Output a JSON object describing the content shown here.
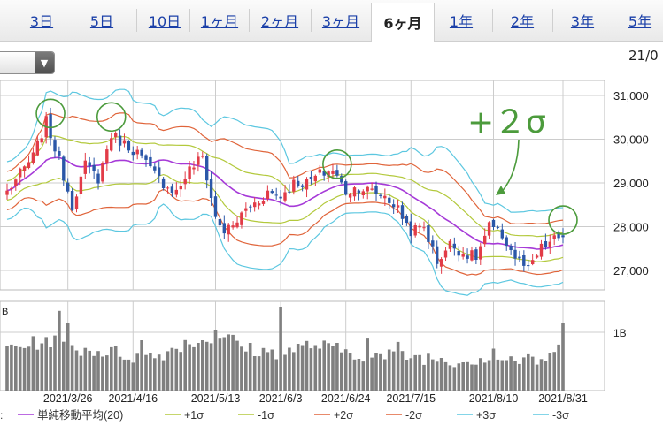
{
  "tabs": [
    {
      "label": "3日",
      "active": false
    },
    {
      "label": "5日",
      "active": false
    },
    {
      "label": "10日",
      "active": false
    },
    {
      "label": "1ヶ月",
      "active": false
    },
    {
      "label": "2ヶ月",
      "active": false
    },
    {
      "label": "3ヶ月",
      "active": false
    },
    {
      "label": "6ヶ月",
      "active": true
    },
    {
      "label": "1年",
      "active": false
    },
    {
      "label": "2年",
      "active": false
    },
    {
      "label": "3年",
      "active": false
    },
    {
      "label": "5年",
      "active": false
    }
  ],
  "date_partial": "21/0",
  "dropdown_arrow": "▼",
  "annotation": "+２σ",
  "volume_axis_prefix": "B",
  "legend_prefix": ":",
  "chart_data": {
    "type": "candlestick",
    "x_tick_labels": [
      "2021/3/26",
      "2021/4/16",
      "2021/5/13",
      "2021/6/3",
      "2021/6/24",
      "2021/7/15",
      "2021/8/10",
      "2021/8/31"
    ],
    "price_axis": {
      "ticks": [
        "31,000",
        "30,000",
        "29,000",
        "28,000",
        "27,000"
      ],
      "range": [
        26600,
        31300
      ]
    },
    "volume_axis": {
      "ticks": [
        "1B"
      ]
    },
    "legend": [
      {
        "label": "単純移動平均(20)",
        "color": "#a63ad8"
      },
      {
        "label": "+1σ",
        "color": "#b3c93c"
      },
      {
        "label": "-1σ",
        "color": "#b3c93c"
      },
      {
        "label": "+2σ",
        "color": "#e0643a"
      },
      {
        "label": "-2σ",
        "color": "#e0643a"
      },
      {
        "label": "+3σ",
        "color": "#5cc7e0"
      },
      {
        "label": "-3σ",
        "color": "#5cc7e0"
      }
    ],
    "colors": {
      "up": "#e23c48",
      "down": "#2b57a8",
      "volume": "#808080",
      "circle": "#4c9b3c",
      "grid": "#cccccc"
    },
    "close_anchors": [
      [
        0,
        28800
      ],
      [
        3,
        29200
      ],
      [
        6,
        29600
      ],
      [
        9,
        30400
      ],
      [
        12,
        29500
      ],
      [
        15,
        28500
      ],
      [
        18,
        29400
      ],
      [
        21,
        29100
      ],
      [
        24,
        30100
      ],
      [
        27,
        29900
      ],
      [
        30,
        29700
      ],
      [
        33,
        29300
      ],
      [
        36,
        29000
      ],
      [
        39,
        28800
      ],
      [
        42,
        29300
      ],
      [
        45,
        29600
      ],
      [
        48,
        28200
      ],
      [
        50,
        27900
      ],
      [
        52,
        28000
      ],
      [
        55,
        28400
      ],
      [
        58,
        28600
      ],
      [
        60,
        28800
      ],
      [
        63,
        28700
      ],
      [
        66,
        29000
      ],
      [
        69,
        29000
      ],
      [
        72,
        29200
      ],
      [
        75,
        29300
      ],
      [
        78,
        28800
      ],
      [
        81,
        28900
      ],
      [
        84,
        28800
      ],
      [
        87,
        28700
      ],
      [
        90,
        28400
      ],
      [
        93,
        27900
      ],
      [
        96,
        28000
      ],
      [
        99,
        27200
      ],
      [
        102,
        27600
      ],
      [
        105,
        27400
      ],
      [
        108,
        27300
      ],
      [
        111,
        28000
      ],
      [
        114,
        27800
      ],
      [
        117,
        27300
      ],
      [
        120,
        27000
      ],
      [
        123,
        27500
      ],
      [
        126,
        27700
      ],
      [
        128,
        27800
      ]
    ],
    "volume_anchors": [
      [
        0,
        0.52
      ],
      [
        5,
        0.55
      ],
      [
        10,
        0.6
      ],
      [
        15,
        0.5
      ],
      [
        20,
        0.48
      ],
      [
        25,
        0.45
      ],
      [
        30,
        0.4
      ],
      [
        35,
        0.42
      ],
      [
        40,
        0.55
      ],
      [
        45,
        0.6
      ],
      [
        50,
        0.66
      ],
      [
        55,
        0.5
      ],
      [
        60,
        0.45
      ],
      [
        65,
        0.48
      ],
      [
        70,
        0.55
      ],
      [
        75,
        0.5
      ],
      [
        80,
        0.45
      ],
      [
        85,
        0.4
      ],
      [
        90,
        0.42
      ],
      [
        95,
        0.4
      ],
      [
        100,
        0.38
      ],
      [
        105,
        0.35
      ],
      [
        110,
        0.4
      ],
      [
        115,
        0.38
      ],
      [
        120,
        0.35
      ],
      [
        125,
        0.38
      ],
      [
        128,
        0.55
      ]
    ],
    "volume_spikes": [
      [
        12,
        0.95
      ],
      [
        14,
        0.8
      ],
      [
        31,
        0.6
      ],
      [
        48,
        0.72
      ],
      [
        63,
        1.0
      ],
      [
        83,
        0.62
      ],
      [
        90,
        0.58
      ],
      [
        112,
        0.5
      ],
      [
        128,
        0.8
      ]
    ],
    "circled_candles": [
      10,
      24,
      76,
      128
    ]
  }
}
